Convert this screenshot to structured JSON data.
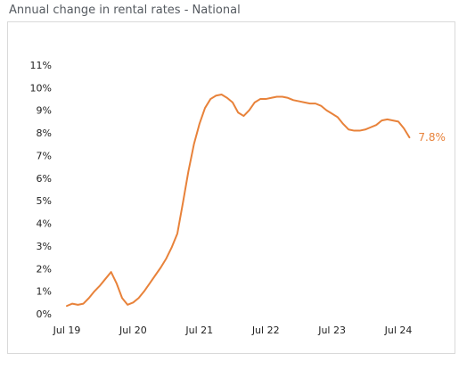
{
  "title": "Annual change in rental rates - National",
  "colors": {
    "line": "#e8823a",
    "tick_text": "#222222",
    "frame": "#d9d9d9",
    "title_text": "#555a60"
  },
  "chart_data": {
    "type": "line",
    "title": "Annual change in rental rates - National",
    "xlabel": "",
    "ylabel": "",
    "grid": false,
    "legend": "none",
    "x_ticks": [
      "Jul 19",
      "Jul 20",
      "Jul 21",
      "Jul 22",
      "Jul 23",
      "Jul 24"
    ],
    "y_ticks": [
      "0%",
      "1%",
      "2%",
      "3%",
      "4%",
      "5%",
      "6%",
      "7%",
      "8%",
      "9%",
      "10%",
      "11%"
    ],
    "ylim": [
      0,
      11
    ],
    "x_unit": "months since Jul 19",
    "end_label": "7.8%",
    "series": [
      {
        "values": [
          [
            0,
            0.35
          ],
          [
            1,
            0.45
          ],
          [
            2,
            0.4
          ],
          [
            3,
            0.45
          ],
          [
            4,
            0.7
          ],
          [
            5,
            1.0
          ],
          [
            6,
            1.25
          ],
          [
            7,
            1.55
          ],
          [
            8,
            1.85
          ],
          [
            9,
            1.35
          ],
          [
            10,
            0.7
          ],
          [
            11,
            0.4
          ],
          [
            12,
            0.5
          ],
          [
            13,
            0.7
          ],
          [
            14,
            1.0
          ],
          [
            15,
            1.35
          ],
          [
            16,
            1.7
          ],
          [
            17,
            2.05
          ],
          [
            18,
            2.45
          ],
          [
            19,
            2.95
          ],
          [
            20,
            3.55
          ],
          [
            21,
            4.9
          ],
          [
            22,
            6.3
          ],
          [
            23,
            7.5
          ],
          [
            24,
            8.4
          ],
          [
            25,
            9.1
          ],
          [
            26,
            9.5
          ],
          [
            27,
            9.65
          ],
          [
            28,
            9.7
          ],
          [
            29,
            9.55
          ],
          [
            30,
            9.35
          ],
          [
            31,
            8.9
          ],
          [
            32,
            8.75
          ],
          [
            33,
            9.0
          ],
          [
            34,
            9.35
          ],
          [
            35,
            9.5
          ],
          [
            36,
            9.5
          ],
          [
            37,
            9.55
          ],
          [
            38,
            9.6
          ],
          [
            39,
            9.6
          ],
          [
            40,
            9.55
          ],
          [
            41,
            9.45
          ],
          [
            42,
            9.4
          ],
          [
            43,
            9.35
          ],
          [
            44,
            9.3
          ],
          [
            45,
            9.3
          ],
          [
            46,
            9.2
          ],
          [
            47,
            9.0
          ],
          [
            48,
            8.85
          ],
          [
            49,
            8.7
          ],
          [
            50,
            8.4
          ],
          [
            51,
            8.15
          ],
          [
            52,
            8.1
          ],
          [
            53,
            8.1
          ],
          [
            54,
            8.15
          ],
          [
            55,
            8.25
          ],
          [
            56,
            8.35
          ],
          [
            57,
            8.55
          ],
          [
            58,
            8.6
          ],
          [
            59,
            8.55
          ],
          [
            60,
            8.5
          ],
          [
            61,
            8.2
          ],
          [
            62,
            7.8
          ]
        ]
      }
    ]
  }
}
